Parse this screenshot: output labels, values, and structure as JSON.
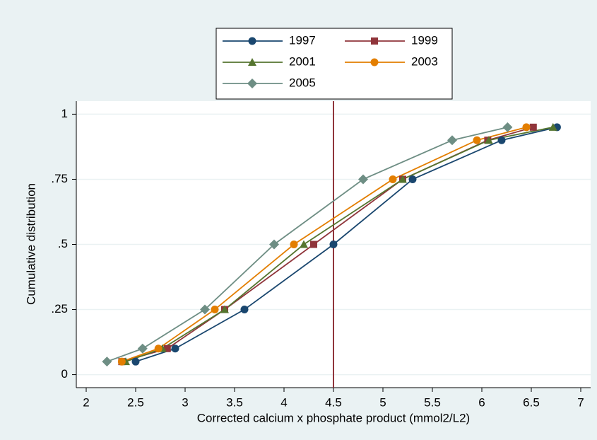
{
  "chart_data": {
    "type": "line",
    "xlabel": "Corrected calcium x phosphate product (mmol2/L2)",
    "ylabel": "Cumulative distribution",
    "xlim": [
      1.9,
      7.1
    ],
    "ylim": [
      -0.05,
      1.05
    ],
    "xticks": [
      2,
      2.5,
      3,
      3.5,
      4,
      4.5,
      5,
      5.5,
      6,
      6.5,
      7
    ],
    "yticks": [
      0,
      {
        "value": 0.25,
        "label": ".25"
      },
      {
        "value": 0.5,
        "label": ".5"
      },
      {
        "value": 0.75,
        "label": ".75"
      },
      1
    ],
    "grid": true,
    "xline": 4.5,
    "xline_color": "#90353b",
    "series": [
      {
        "name": "1997",
        "color": "#1a476f",
        "marker": "circle",
        "x": [
          2.5,
          2.9,
          3.6,
          4.5,
          5.3,
          6.2,
          6.76
        ],
        "values": [
          0.05,
          0.1,
          0.25,
          0.5,
          0.75,
          0.9,
          0.95
        ]
      },
      {
        "name": "1999",
        "color": "#90353b",
        "marker": "square",
        "x": [
          2.36,
          2.82,
          3.4,
          4.3,
          5.2,
          6.06,
          6.52
        ],
        "values": [
          0.05,
          0.1,
          0.25,
          0.5,
          0.75,
          0.9,
          0.95
        ]
      },
      {
        "name": "2001",
        "color": "#55752f",
        "marker": "triangle",
        "x": [
          2.4,
          2.77,
          3.4,
          4.2,
          5.2,
          6.07,
          6.72
        ],
        "values": [
          0.05,
          0.1,
          0.25,
          0.5,
          0.75,
          0.9,
          0.95
        ]
      },
      {
        "name": "2003",
        "color": "#e37e00",
        "marker": "circle",
        "x": [
          2.36,
          2.73,
          3.3,
          4.1,
          5.1,
          5.95,
          6.45
        ],
        "values": [
          0.05,
          0.1,
          0.25,
          0.5,
          0.75,
          0.9,
          0.95
        ]
      },
      {
        "name": "2005",
        "color": "#6e8e84",
        "marker": "diamond",
        "x": [
          2.21,
          2.57,
          3.2,
          3.9,
          4.8,
          5.7,
          6.26
        ],
        "values": [
          0.05,
          0.1,
          0.25,
          0.5,
          0.75,
          0.9,
          0.95
        ]
      }
    ]
  }
}
